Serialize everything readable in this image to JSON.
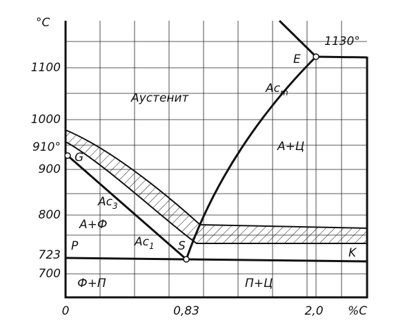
{
  "axis": {
    "unit_y": "°C",
    "unit_x": "%C",
    "y_labels": [
      "1100",
      "1000",
      "910°",
      "900",
      "800",
      "723",
      "700"
    ],
    "x_labels": [
      "0",
      "0,83",
      "2,0"
    ]
  },
  "points": {
    "G": "G",
    "S": "S",
    "E": "E",
    "P": "P",
    "K": "K",
    "E_temp": "1130°"
  },
  "lines": {
    "acm": {
      "base": "Ac",
      "sub": "m"
    },
    "ac3": {
      "base": "Ac",
      "sub": "3"
    },
    "ac1": {
      "base": "Ac",
      "sub": "1"
    }
  },
  "regions": {
    "austenite": "Аустенит",
    "a_c": "А+Ц",
    "a_f": "А+Ф",
    "f_p": "Ф+П",
    "p_c": "П+Ц"
  }
}
